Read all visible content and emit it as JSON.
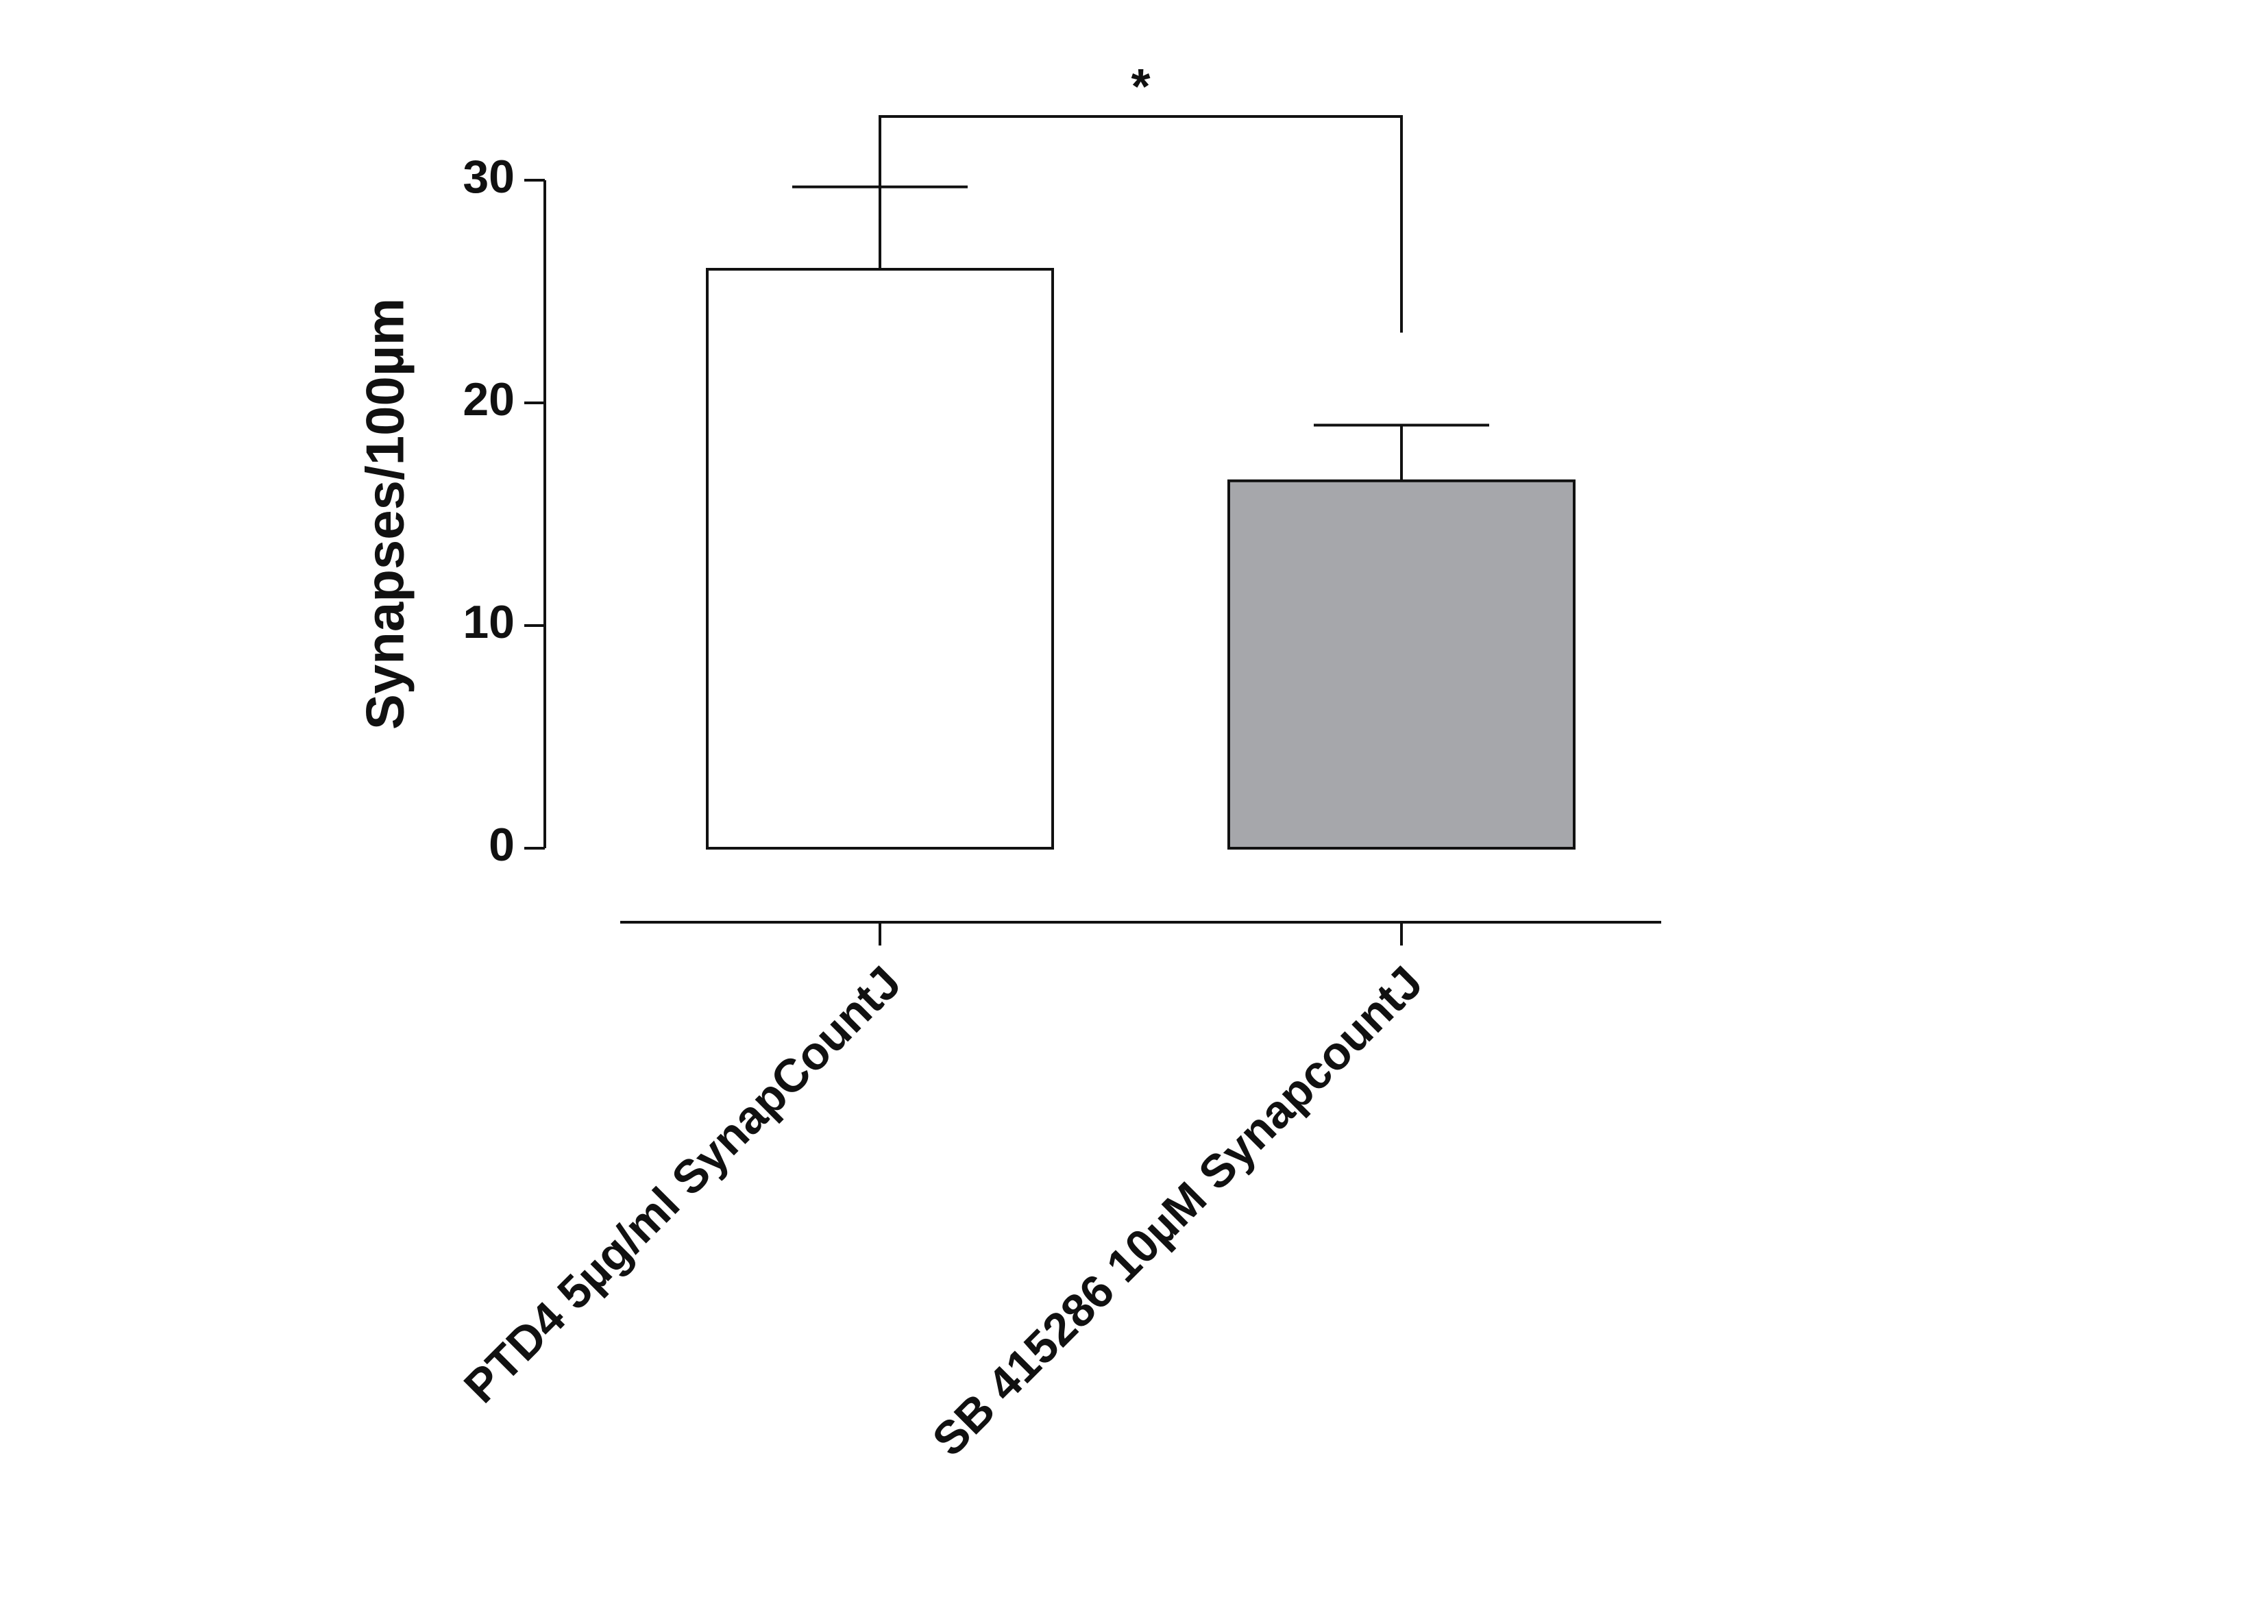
{
  "chart_data": {
    "type": "bar",
    "y_label": "Synapses/100µm",
    "categories": [
      "PTD4 5µg/ml SynapCountJ",
      "SB 415286 10µM SynapcountJ"
    ],
    "values": [
      26,
      16.5
    ],
    "errors": [
      3.7,
      2.5
    ],
    "colors": [
      "#ffffff",
      "#a6a7ab"
    ],
    "ylim": [
      0,
      30
    ],
    "yticks": [
      0,
      10,
      20,
      30
    ],
    "significance": {
      "text": "*",
      "between": [
        0,
        1
      ]
    }
  }
}
